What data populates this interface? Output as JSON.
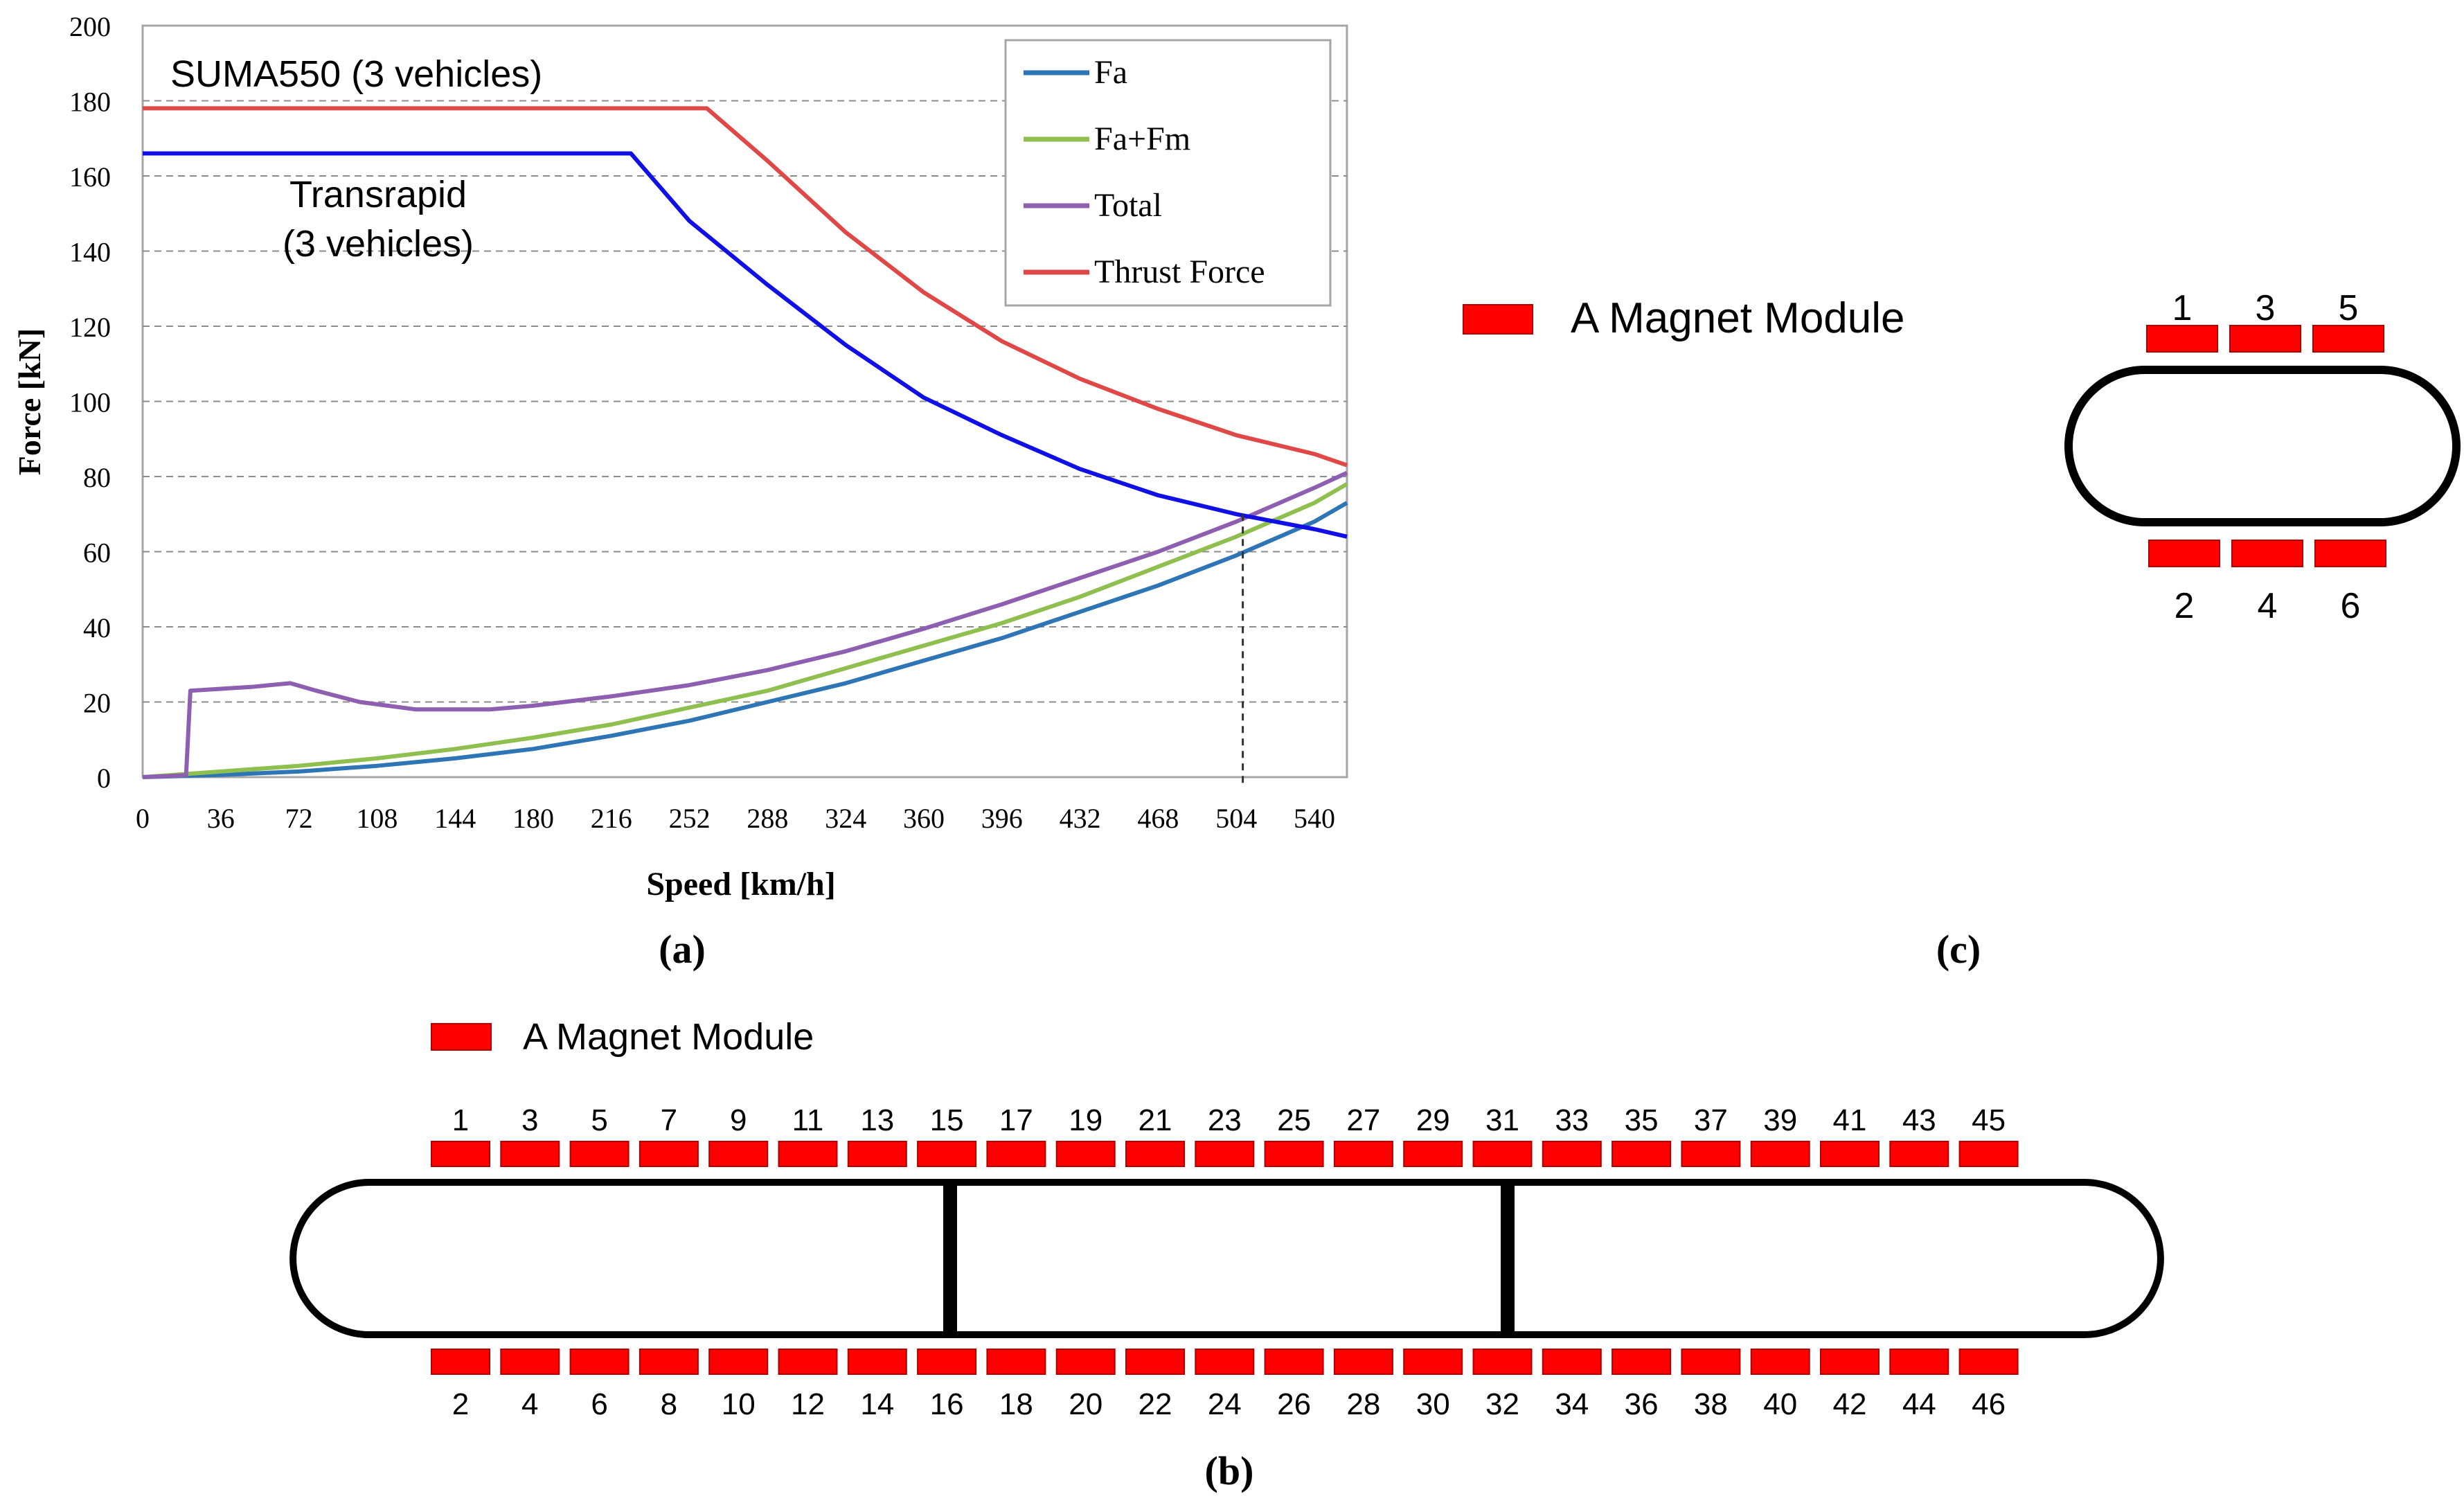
{
  "chart_data": {
    "type": "line",
    "xlabel": "Speed [km/h]",
    "ylabel": "Force [kN]",
    "xlim": [
      0,
      555
    ],
    "ylim": [
      0,
      200
    ],
    "x_ticks": [
      "0",
      "36",
      "72",
      "108",
      "144",
      "180",
      "216",
      "252",
      "288",
      "324",
      "360",
      "396",
      "432",
      "468",
      "504",
      "540"
    ],
    "y_ticks": [
      "0",
      "20",
      "40",
      "60",
      "80",
      "100",
      "120",
      "140",
      "160",
      "180",
      "200"
    ],
    "grid": "horizontal dashed",
    "legend_position": "top-right",
    "annotations": {
      "suma": "SUMA550 (3 vehicles)",
      "transrapid_line1": "Transrapid",
      "transrapid_line2": "(3 vehicles)",
      "marker_speed": 507
    },
    "series": [
      {
        "name": "Fa",
        "color": "#2e75b6",
        "in_legend": true,
        "x": [
          0,
          36,
          72,
          108,
          144,
          180,
          216,
          252,
          288,
          324,
          360,
          396,
          432,
          468,
          504,
          540,
          555
        ],
        "y": [
          0,
          0.6,
          1.5,
          3,
          5,
          7.5,
          11,
          15,
          20,
          25,
          31,
          37,
          44,
          51,
          59,
          68,
          73
        ]
      },
      {
        "name": "Fa+Fm",
        "color": "#8fbf4f",
        "in_legend": true,
        "x": [
          0,
          36,
          72,
          108,
          144,
          180,
          216,
          252,
          288,
          324,
          360,
          396,
          432,
          468,
          504,
          540,
          555
        ],
        "y": [
          0,
          1.5,
          3,
          5,
          7.5,
          10.5,
          14,
          18.5,
          23,
          29,
          35,
          41,
          48,
          56,
          64,
          73,
          78
        ]
      },
      {
        "name": "Total",
        "color": "#8e5fb0",
        "in_legend": true,
        "x": [
          0,
          20,
          22,
          36,
          50,
          68,
          80,
          100,
          126,
          160,
          180,
          216,
          252,
          288,
          324,
          360,
          396,
          432,
          468,
          504,
          540,
          555
        ],
        "y": [
          0,
          0.5,
          23,
          23.5,
          24,
          25,
          23,
          20,
          18,
          18,
          19,
          21.5,
          24.5,
          28.5,
          33.5,
          39.5,
          46,
          53,
          60,
          68,
          77,
          81
        ]
      },
      {
        "name": "Thrust Force",
        "color": "#e04848",
        "in_legend": true,
        "x": [
          0,
          260,
          288,
          324,
          360,
          396,
          432,
          468,
          504,
          540,
          555
        ],
        "y": [
          178,
          178,
          164,
          145,
          129,
          116,
          106,
          98,
          91,
          86,
          83
        ]
      },
      {
        "name": "Transrapid",
        "color": "#1010e6",
        "in_legend": false,
        "x": [
          0,
          225,
          252,
          288,
          324,
          360,
          396,
          432,
          468,
          504,
          540,
          555
        ],
        "y": [
          166,
          166,
          148,
          131,
          115,
          101,
          91,
          82,
          75,
          70,
          66,
          64
        ]
      }
    ]
  },
  "panel_labels": {
    "a": "(a)",
    "b": "(b)",
    "c": "(c)"
  },
  "magnet_legend_label": "A Magnet Module",
  "magnet_color": "#ff0000",
  "diagram_c": {
    "top_numbers": [
      "1",
      "3",
      "5"
    ],
    "bottom_numbers": [
      "2",
      "4",
      "6"
    ]
  },
  "diagram_b": {
    "top_numbers": [
      "1",
      "3",
      "5",
      "7",
      "9",
      "11",
      "13",
      "15",
      "17",
      "19",
      "21",
      "23",
      "25",
      "27",
      "29",
      "31",
      "33",
      "35",
      "37",
      "39",
      "41",
      "43",
      "45"
    ],
    "bottom_numbers": [
      "2",
      "4",
      "6",
      "8",
      "10",
      "12",
      "14",
      "16",
      "18",
      "20",
      "22",
      "24",
      "26",
      "28",
      "30",
      "32",
      "34",
      "36",
      "38",
      "40",
      "42",
      "44",
      "46"
    ]
  }
}
